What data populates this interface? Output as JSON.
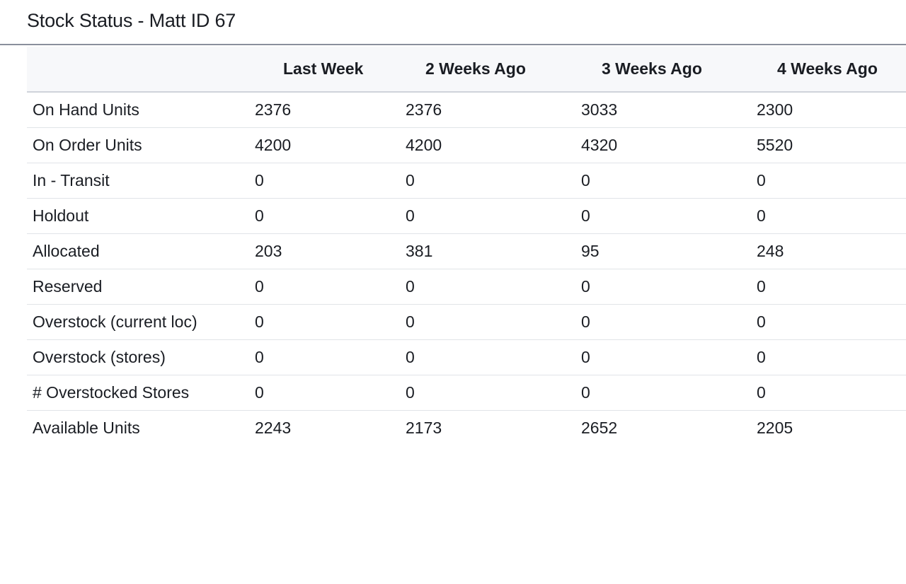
{
  "page": {
    "title": "Stock Status - Matt ID 67"
  },
  "table": {
    "columns": [
      "",
      "Last Week",
      "2 Weeks Ago",
      "3 Weeks Ago",
      "4 Weeks Ago"
    ],
    "rows": [
      {
        "label": "On Hand Units",
        "values": [
          "2376",
          "2376",
          "3033",
          "2300"
        ]
      },
      {
        "label": "On Order Units",
        "values": [
          "4200",
          "4200",
          "4320",
          "5520"
        ]
      },
      {
        "label": "In - Transit",
        "values": [
          "0",
          "0",
          "0",
          "0"
        ]
      },
      {
        "label": "Holdout",
        "values": [
          "0",
          "0",
          "0",
          "0"
        ]
      },
      {
        "label": "Allocated",
        "values": [
          "203",
          "381",
          "95",
          "248"
        ]
      },
      {
        "label": "Reserved",
        "values": [
          "0",
          "0",
          "0",
          "0"
        ]
      },
      {
        "label": "Overstock (current loc)",
        "values": [
          "0",
          "0",
          "0",
          "0"
        ]
      },
      {
        "label": "Overstock (stores)",
        "values": [
          "0",
          "0",
          "0",
          "0"
        ]
      },
      {
        "label": "# Overstocked Stores",
        "values": [
          "0",
          "0",
          "0",
          "0"
        ]
      },
      {
        "label": "Available Units",
        "values": [
          "2243",
          "2173",
          "2652",
          "2205"
        ]
      }
    ]
  },
  "colors": {
    "header_background": "#f7f8fa",
    "header_rule": "#8a8f9c",
    "row_divider": "#e1e4e8",
    "text": "#1a1d23"
  }
}
